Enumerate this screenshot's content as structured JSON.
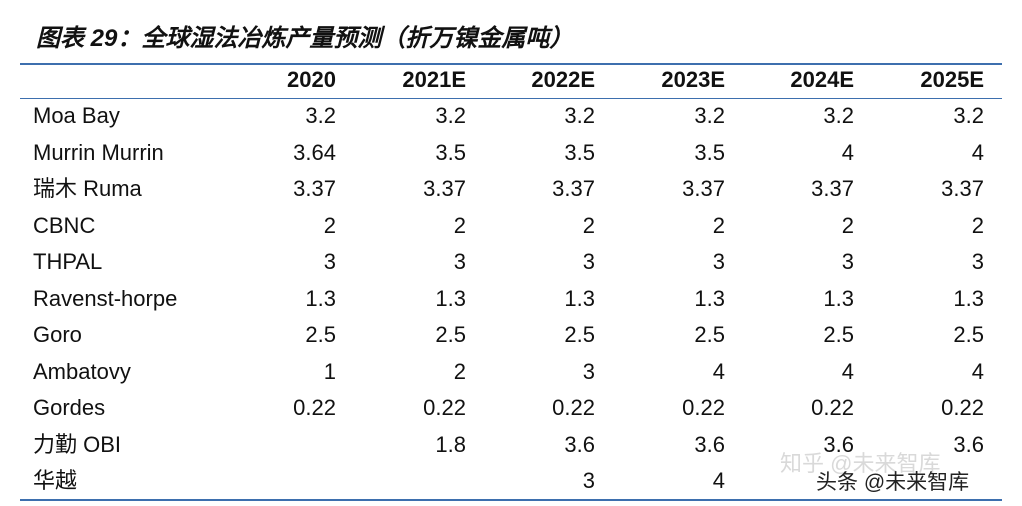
{
  "title": "图表 29：全球湿法冶炼产量预测（折万镍金属吨）",
  "table": {
    "header": [
      null,
      "2020",
      "2021E",
      "2022E",
      "2023E",
      "2024E",
      "2025E"
    ],
    "rows": [
      [
        "Moa Bay",
        3.2,
        3.2,
        3.2,
        3.2,
        3.2,
        3.2
      ],
      [
        "Murrin Murrin",
        3.64,
        3.5,
        3.5,
        3.5,
        4,
        4
      ],
      [
        "瑞木 Ruma",
        3.37,
        3.37,
        3.37,
        3.37,
        3.37,
        3.37
      ],
      [
        "CBNC",
        2,
        2,
        2,
        2,
        2,
        2
      ],
      [
        "THPAL",
        3,
        3,
        3,
        3,
        3,
        3
      ],
      [
        "Ravenst-horpe",
        1.3,
        1.3,
        1.3,
        1.3,
        1.3,
        1.3
      ],
      [
        "Goro",
        2.5,
        2.5,
        2.5,
        2.5,
        2.5,
        2.5
      ],
      [
        "Ambatovy",
        1,
        2,
        3,
        4,
        4,
        4
      ],
      [
        "Gordes",
        0.22,
        0.22,
        0.22,
        0.22,
        0.22,
        0.22
      ],
      [
        "力勤 OBI",
        null,
        1.8,
        3.6,
        3.6,
        3.6,
        3.6
      ],
      [
        "华越",
        null,
        null,
        3,
        4,
        null,
        null
      ]
    ]
  },
  "watermarks": [
    "知乎 @未来智库",
    "头条 @未来智库"
  ]
}
